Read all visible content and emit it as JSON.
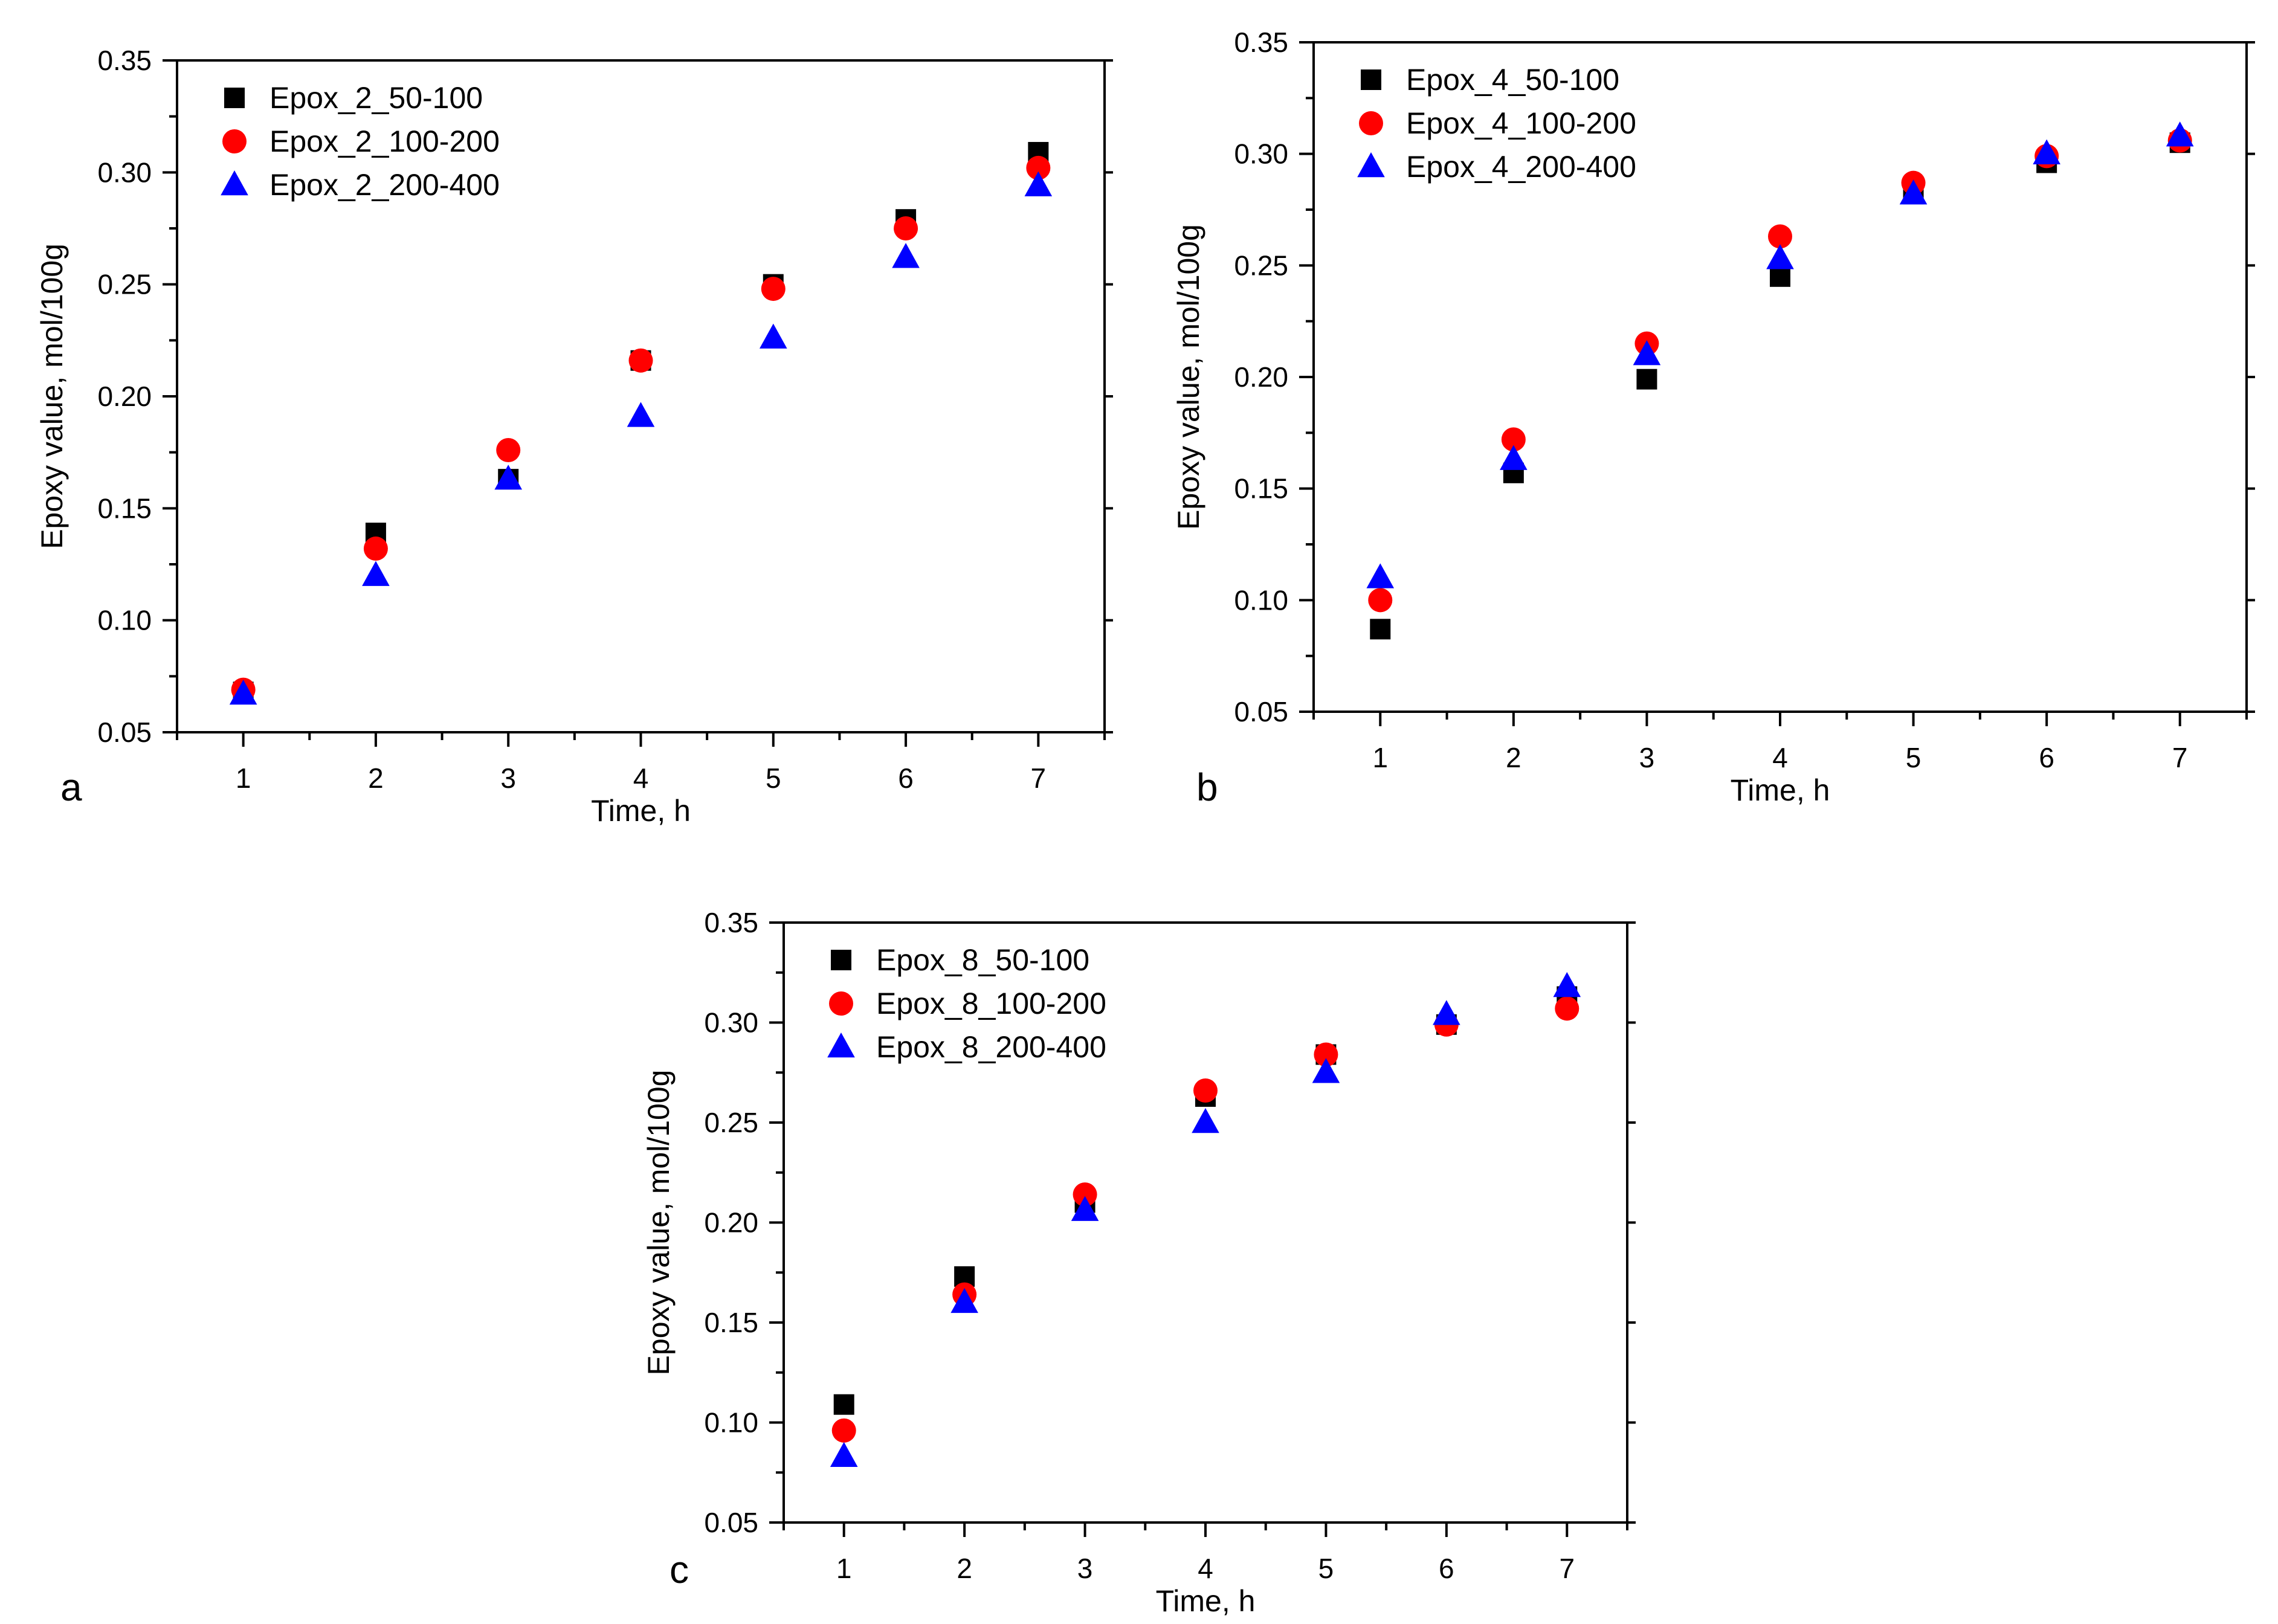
{
  "chart_data": [
    {
      "type": "scatter",
      "panel_label": "a",
      "title": "",
      "xlabel": "Time, h",
      "ylabel": "Epoxy value, mol/100g",
      "xlim": [
        0.5,
        7.5
      ],
      "ylim": [
        0.05,
        0.35
      ],
      "xticks": [
        1,
        2,
        3,
        4,
        5,
        6,
        7
      ],
      "yticks": [
        0.05,
        0.1,
        0.15,
        0.2,
        0.25,
        0.3,
        0.35
      ],
      "x": [
        1,
        2,
        3,
        4,
        5,
        6,
        7
      ],
      "legend_position": "top-left",
      "grid": false,
      "series": [
        {
          "name": "Epox_2_50-100",
          "marker": "square",
          "color": "#000000",
          "values": [
            0.068,
            0.139,
            0.163,
            0.216,
            0.25,
            0.279,
            0.309
          ]
        },
        {
          "name": "Epox_2_100-200",
          "marker": "circle",
          "color": "#ff0000",
          "values": [
            0.069,
            0.132,
            0.176,
            0.216,
            0.248,
            0.275,
            0.302
          ]
        },
        {
          "name": "Epox_2_200-400",
          "marker": "triangle",
          "color": "#0000ff",
          "values": [
            0.067,
            0.12,
            0.163,
            0.191,
            0.226,
            0.262,
            0.294
          ]
        }
      ]
    },
    {
      "type": "scatter",
      "panel_label": "b",
      "title": "",
      "xlabel": "Time, h",
      "ylabel": "Epoxy value, mol/100g",
      "xlim": [
        0.5,
        7.5
      ],
      "ylim": [
        0.05,
        0.35
      ],
      "xticks": [
        1,
        2,
        3,
        4,
        5,
        6,
        7
      ],
      "yticks": [
        0.05,
        0.1,
        0.15,
        0.2,
        0.25,
        0.3,
        0.35
      ],
      "x": [
        1,
        2,
        3,
        4,
        5,
        6,
        7
      ],
      "legend_position": "top-left",
      "grid": false,
      "series": [
        {
          "name": "Epox_4_50-100",
          "marker": "square",
          "color": "#000000",
          "values": [
            0.087,
            0.157,
            0.199,
            0.245,
            0.282,
            0.296,
            0.305
          ]
        },
        {
          "name": "Epox_4_100-200",
          "marker": "circle",
          "color": "#ff0000",
          "values": [
            0.1,
            0.172,
            0.215,
            0.263,
            0.287,
            0.299,
            0.306
          ]
        },
        {
          "name": "Epox_4_200-400",
          "marker": "triangle",
          "color": "#0000ff",
          "values": [
            0.11,
            0.163,
            0.21,
            0.253,
            0.282,
            0.3,
            0.308
          ]
        }
      ]
    },
    {
      "type": "scatter",
      "panel_label": "c",
      "title": "",
      "xlabel": "Time, h",
      "ylabel": "Epoxy value, mol/100g",
      "xlim": [
        0.5,
        7.5
      ],
      "ylim": [
        0.05,
        0.35
      ],
      "xticks": [
        1,
        2,
        3,
        4,
        5,
        6,
        7
      ],
      "yticks": [
        0.05,
        0.1,
        0.15,
        0.2,
        0.25,
        0.3,
        0.35
      ],
      "x": [
        1,
        2,
        3,
        4,
        5,
        6,
        7
      ],
      "legend_position": "top-left",
      "grid": false,
      "series": [
        {
          "name": "Epox_8_50-100",
          "marker": "square",
          "color": "#000000",
          "values": [
            0.109,
            0.173,
            0.21,
            0.263,
            0.284,
            0.299,
            0.313
          ]
        },
        {
          "name": "Epox_8_100-200",
          "marker": "circle",
          "color": "#ff0000",
          "values": [
            0.096,
            0.164,
            0.214,
            0.266,
            0.284,
            0.299,
            0.307
          ]
        },
        {
          "name": "Epox_8_200-400",
          "marker": "triangle",
          "color": "#0000ff",
          "values": [
            0.083,
            0.16,
            0.206,
            0.25,
            0.275,
            0.304,
            0.318
          ]
        }
      ]
    }
  ]
}
